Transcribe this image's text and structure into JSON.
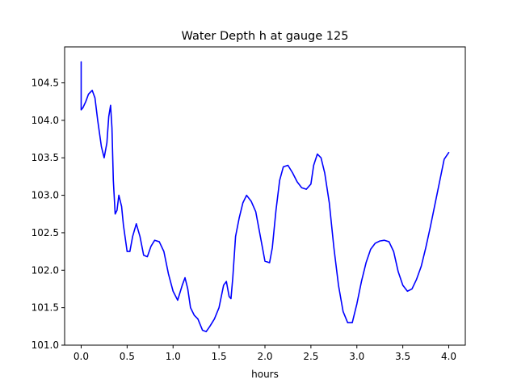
{
  "chart_data": {
    "type": "line",
    "title": "Water Depth h at gauge 125",
    "xlabel": "hours",
    "ylabel": "",
    "xlim": [
      -0.18,
      4.18
    ],
    "ylim": [
      101.0,
      104.98
    ],
    "xticks": [
      0.0,
      0.5,
      1.0,
      1.5,
      2.0,
      2.5,
      3.0,
      3.5,
      4.0
    ],
    "xtick_labels": [
      "0.0",
      "0.5",
      "1.0",
      "1.5",
      "2.0",
      "2.5",
      "3.0",
      "3.5",
      "4.0"
    ],
    "yticks": [
      101.0,
      101.5,
      102.0,
      102.5,
      103.0,
      103.5,
      104.0,
      104.5
    ],
    "ytick_labels": [
      "101.0",
      "101.5",
      "102.0",
      "102.5",
      "103.0",
      "103.5",
      "104.0",
      "104.5"
    ],
    "grid": false,
    "series": [
      {
        "color": "#0000ff",
        "x": [
          0.0,
          0.0,
          0.02,
          0.05,
          0.08,
          0.12,
          0.15,
          0.18,
          0.22,
          0.25,
          0.28,
          0.3,
          0.32,
          0.335,
          0.35,
          0.37,
          0.39,
          0.41,
          0.44,
          0.46,
          0.5,
          0.53,
          0.56,
          0.6,
          0.64,
          0.68,
          0.72,
          0.76,
          0.8,
          0.85,
          0.9,
          0.95,
          1.0,
          1.05,
          1.1,
          1.13,
          1.16,
          1.19,
          1.23,
          1.27,
          1.32,
          1.36,
          1.4,
          1.45,
          1.5,
          1.55,
          1.58,
          1.61,
          1.63,
          1.65,
          1.68,
          1.72,
          1.76,
          1.8,
          1.85,
          1.9,
          1.95,
          2.0,
          2.05,
          2.08,
          2.12,
          2.16,
          2.2,
          2.25,
          2.3,
          2.35,
          2.4,
          2.45,
          2.5,
          2.53,
          2.57,
          2.61,
          2.65,
          2.7,
          2.75,
          2.8,
          2.85,
          2.9,
          2.95,
          3.0,
          3.05,
          3.1,
          3.15,
          3.2,
          3.25,
          3.3,
          3.35,
          3.4,
          3.45,
          3.5,
          3.55,
          3.6,
          3.65,
          3.7,
          3.75,
          3.8,
          3.85,
          3.9,
          3.95,
          4.0
        ],
        "y": [
          104.78,
          104.14,
          104.17,
          104.25,
          104.35,
          104.4,
          104.3,
          104.0,
          103.65,
          103.5,
          103.7,
          104.05,
          104.2,
          103.9,
          103.2,
          102.75,
          102.8,
          103.0,
          102.85,
          102.6,
          102.25,
          102.25,
          102.45,
          102.62,
          102.45,
          102.2,
          102.18,
          102.32,
          102.4,
          102.38,
          102.25,
          101.95,
          101.72,
          101.6,
          101.8,
          101.9,
          101.75,
          101.5,
          101.4,
          101.35,
          101.2,
          101.18,
          101.25,
          101.35,
          101.5,
          101.8,
          101.85,
          101.65,
          101.62,
          101.9,
          102.45,
          102.7,
          102.9,
          103.0,
          102.92,
          102.78,
          102.45,
          102.12,
          102.1,
          102.3,
          102.8,
          103.2,
          103.38,
          103.4,
          103.3,
          103.18,
          103.1,
          103.08,
          103.15,
          103.4,
          103.55,
          103.5,
          103.3,
          102.9,
          102.3,
          101.8,
          101.45,
          101.3,
          101.3,
          101.55,
          101.85,
          102.1,
          102.28,
          102.36,
          102.39,
          102.4,
          102.38,
          102.25,
          101.98,
          101.8,
          101.72,
          101.75,
          101.88,
          102.05,
          102.3,
          102.58,
          102.88,
          103.18,
          103.48,
          103.57
        ]
      }
    ]
  }
}
